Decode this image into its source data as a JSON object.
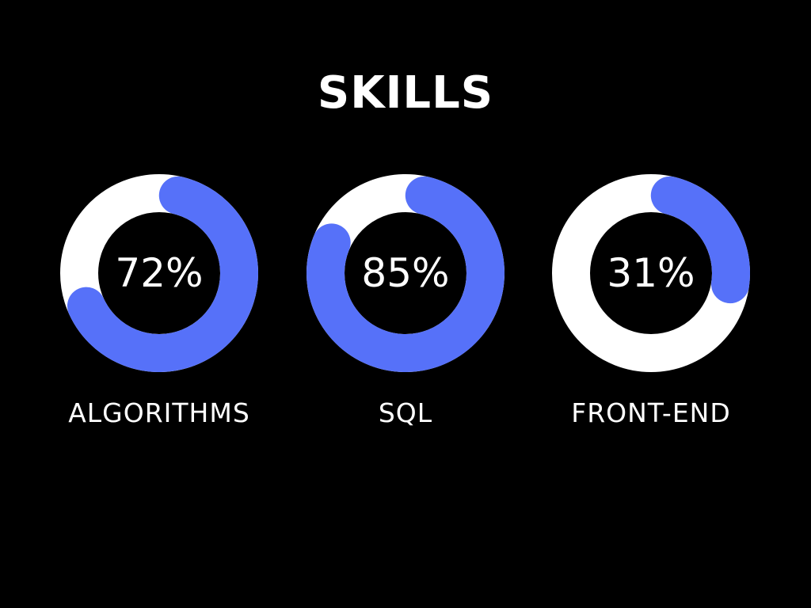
{
  "chart_data": {
    "type": "donut",
    "title": "SKILLS",
    "track_color": "#ffffff",
    "fill_color": "#5671f9",
    "background_color": "#000000",
    "items": [
      {
        "label": "ALGORITHMS",
        "value": 72,
        "value_label": "72%"
      },
      {
        "label": "SQL",
        "value": 85,
        "value_label": "85%"
      },
      {
        "label": "FRONT-END",
        "value": 31,
        "value_label": "31%"
      }
    ]
  }
}
